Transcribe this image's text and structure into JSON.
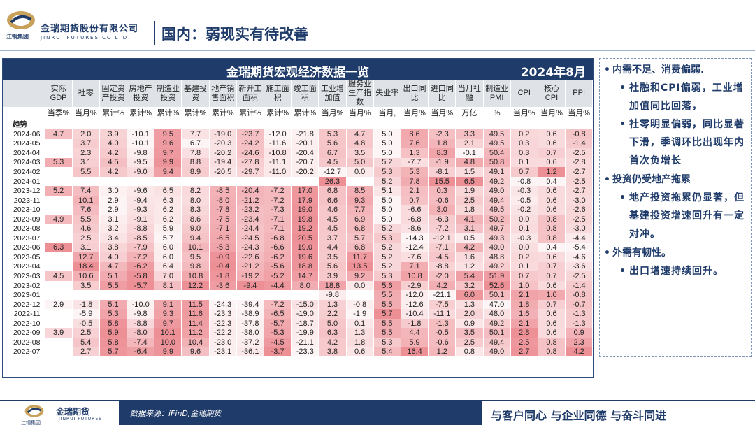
{
  "header": {
    "company_cn": "金瑞期货股份有限公司",
    "company_en": "JINRUI FUTURES CO.LTD.",
    "group_name": "江铜集团",
    "page_title": "国内：弱现实有待改善"
  },
  "table": {
    "title": "金瑞期货宏观经济数据一览",
    "date": "2024年8月",
    "columns": [
      {
        "name": "实际GDP",
        "unit": "当季%"
      },
      {
        "name": "社零",
        "unit": "当月%"
      },
      {
        "name": "固定资产投资",
        "unit": "累计%"
      },
      {
        "name": "房地产投资",
        "unit": "累计%"
      },
      {
        "name": "制造业投资",
        "unit": "累计%"
      },
      {
        "name": "基建投资",
        "unit": "累计%"
      },
      {
        "name": "地产销售面积",
        "unit": "累计%"
      },
      {
        "name": "新开工面积",
        "unit": "累计%"
      },
      {
        "name": "施工面积",
        "unit": "累计%"
      },
      {
        "name": "竣工面积",
        "unit": "累计%"
      },
      {
        "name": "工业增加值",
        "unit": "当月%"
      },
      {
        "name": "服务业生产指数",
        "unit": "当月%"
      },
      {
        "name": "失业率",
        "unit": "当月,"
      },
      {
        "name": "出口同比",
        "unit": "当月%"
      },
      {
        "name": "进口同比",
        "unit": "当月%"
      },
      {
        "name": "当月社融",
        "unit": "万亿"
      },
      {
        "name": "制造业PMI",
        "unit": "%"
      },
      {
        "name": "CPI",
        "unit": "当月%"
      },
      {
        "name": "核心CPI",
        "unit": "当月%"
      },
      {
        "name": "PPI",
        "unit": "当月%"
      }
    ],
    "trend_label": "趋势",
    "rows": [
      {
        "date": "2024-06",
        "v": [
          "4.7",
          "2.0",
          "3.9",
          "-10.1",
          "9.5",
          "7.7",
          "-19.0",
          "-23.7",
          "-12.0",
          "-21.8",
          "5.3",
          "4.7",
          "5.0",
          "8.6",
          "-2.3",
          "3.3",
          "49.5",
          "0.2",
          "0.6",
          "-0.8"
        ]
      },
      {
        "date": "2024-05",
        "v": [
          "",
          "3.7",
          "4.0",
          "-10.1",
          "9.6",
          "6.7",
          "-20.3",
          "-24.2",
          "-11.6",
          "-20.1",
          "5.6",
          "4.8",
          "5.0",
          "7.6",
          "1.8",
          "2.1",
          "49.5",
          "0.3",
          "0.6",
          "-1.4"
        ]
      },
      {
        "date": "2024-04",
        "v": [
          "",
          "2.3",
          "4.2",
          "-9.8",
          "9.7",
          "7.8",
          "-20.2",
          "-24.6",
          "-10.8",
          "-20.4",
          "6.7",
          "3.5",
          "5.0",
          "1.3",
          "8.3",
          "-0.1",
          "50.4",
          "0.3",
          "0.7",
          "-2.5"
        ]
      },
      {
        "date": "2024-03",
        "v": [
          "5.3",
          "3.1",
          "4.5",
          "-9.5",
          "9.9",
          "8.8",
          "-19.4",
          "-27.8",
          "-11.1",
          "-20.7",
          "4.5",
          "5.0",
          "5.2",
          "-7.7",
          "-1.9",
          "4.8",
          "50.8",
          "0.1",
          "0.6",
          "-2.8"
        ]
      },
      {
        "date": "2024-02",
        "v": [
          "",
          "5.5",
          "4.2",
          "-9.0",
          "9.4",
          "8.9",
          "-20.5",
          "-29.7",
          "-11.0",
          "-20.2",
          "-12.7",
          "0.0",
          "5.3",
          "5.3",
          "-8.1",
          "1.5",
          "49.1",
          "0.7",
          "1.2",
          "-2.7"
        ]
      },
      {
        "date": "2024-01",
        "v": [
          "",
          "",
          "",
          "",
          "",
          "",
          "",
          "",
          "",
          "",
          "26.3",
          "",
          "5.2",
          "7.8",
          "15.5",
          "6.5",
          "49.2",
          "-0.8",
          "0.4",
          "-2.5"
        ]
      },
      {
        "date": "2023-12",
        "v": [
          "5.2",
          "7.4",
          "3.0",
          "-9.6",
          "6.5",
          "8.2",
          "-8.5",
          "-20.4",
          "-7.2",
          "17.0",
          "6.8",
          "8.5",
          "5.1",
          "2.1",
          "0.3",
          "1.9",
          "49.0",
          "-0.3",
          "0.6",
          "-2.7"
        ]
      },
      {
        "date": "2023-11",
        "v": [
          "",
          "10.1",
          "2.9",
          "-9.4",
          "6.3",
          "8.0",
          "-8.0",
          "-21.2",
          "-7.2",
          "17.9",
          "6.6",
          "9.3",
          "5.0",
          "0.7",
          "-0.6",
          "2.5",
          "49.4",
          "-0.5",
          "0.6",
          "-3.0"
        ]
      },
      {
        "date": "2023-10",
        "v": [
          "",
          "7.6",
          "2.9",
          "-9.3",
          "6.2",
          "8.3",
          "-7.8",
          "-23.2",
          "-7.3",
          "19.0",
          "4.6",
          "7.7",
          "5.0",
          "-6.6",
          "3.0",
          "1.8",
          "49.5",
          "-0.2",
          "0.6",
          "-2.6"
        ]
      },
      {
        "date": "2023-09",
        "v": [
          "4.9",
          "5.5",
          "3.1",
          "-9.1",
          "6.2",
          "8.6",
          "-7.5",
          "-23.4",
          "-7.1",
          "19.8",
          "4.5",
          "6.9",
          "5.0",
          "-6.8",
          "-6.3",
          "4.1",
          "50.2",
          "0.0",
          "0.8",
          "-2.5"
        ]
      },
      {
        "date": "2023-08",
        "v": [
          "",
          "4.6",
          "3.2",
          "-8.8",
          "5.9",
          "9.0",
          "-7.1",
          "-24.4",
          "-7.1",
          "19.2",
          "4.5",
          "6.8",
          "5.2",
          "-8.6",
          "-7.2",
          "3.1",
          "49.7",
          "0.1",
          "0.8",
          "-3.0"
        ]
      },
      {
        "date": "2023-07",
        "v": [
          "",
          "2.5",
          "3.4",
          "-8.5",
          "5.7",
          "9.4",
          "-6.5",
          "-24.5",
          "-6.8",
          "20.5",
          "3.7",
          "5.7",
          "5.3",
          "-14.3",
          "-12.1",
          "0.5",
          "49.3",
          "-0.3",
          "0.8",
          "-4.4"
        ]
      },
      {
        "date": "2023-06",
        "v": [
          "6.3",
          "3.1",
          "3.8",
          "-7.9",
          "6.0",
          "10.1",
          "-5.3",
          "-24.3",
          "-6.6",
          "19.0",
          "4.4",
          "6.8",
          "5.2",
          "-12.4",
          "-7.1",
          "4.2",
          "49.0",
          "0.0",
          "0.4",
          "-5.4"
        ]
      },
      {
        "date": "2023-05",
        "v": [
          "",
          "12.7",
          "4.0",
          "-7.2",
          "6.0",
          "9.5",
          "-0.9",
          "-22.6",
          "-6.2",
          "19.6",
          "3.5",
          "11.7",
          "5.2",
          "-7.6",
          "-4.5",
          "1.6",
          "48.8",
          "0.2",
          "0.6",
          "-4.6"
        ]
      },
      {
        "date": "2023-04",
        "v": [
          "",
          "18.4",
          "4.7",
          "-6.2",
          "6.4",
          "9.8",
          "-0.4",
          "-21.2",
          "-5.6",
          "18.8",
          "5.6",
          "13.5",
          "5.2",
          "7.1",
          "-8.8",
          "1.2",
          "49.2",
          "0.1",
          "0.7",
          "-3.6"
        ]
      },
      {
        "date": "2023-03",
        "v": [
          "4.5",
          "10.6",
          "5.1",
          "-5.8",
          "7.0",
          "10.8",
          "-1.8",
          "-19.2",
          "-5.2",
          "14.7",
          "3.9",
          "9.2",
          "5.3",
          "10.8",
          "-2.0",
          "5.4",
          "51.9",
          "0.7",
          "0.7",
          "-2.5"
        ]
      },
      {
        "date": "2023-02",
        "v": [
          "",
          "3.5",
          "5.5",
          "-5.7",
          "8.1",
          "12.2",
          "-3.6",
          "-9.4",
          "-4.4",
          "8.0",
          "18.8",
          "0.0",
          "5.6",
          "-2.9",
          "4.2",
          "3.2",
          "52.6",
          "1.0",
          "0.6",
          "-1.4"
        ]
      },
      {
        "date": "2023-01",
        "v": [
          "",
          "",
          "",
          "",
          "",
          "",
          "",
          "",
          "",
          "",
          "-9.8",
          "",
          "5.5",
          "-12.0",
          "-21.1",
          "6.0",
          "50.1",
          "2.1",
          "1.0",
          "-0.8"
        ]
      },
      {
        "date": "2022-12",
        "v": [
          "2.9",
          "-1.8",
          "5.1",
          "-10.0",
          "9.1",
          "11.5",
          "-24.3",
          "-39.4",
          "-7.2",
          "-15.0",
          "1.3",
          "-0.8",
          "5.5",
          "-12.6",
          "-7.5",
          "1.3",
          "47.0",
          "1.8",
          "0.7",
          "-0.7"
        ]
      },
      {
        "date": "2022-11",
        "v": [
          "",
          "-5.9",
          "5.3",
          "-9.8",
          "9.3",
          "11.6",
          "-23.3",
          "-38.9",
          "-6.5",
          "-19.0",
          "2.2",
          "-1.9",
          "5.7",
          "-10.4",
          "-11.1",
          "2.0",
          "48.0",
          "1.6",
          "0.6",
          "-1.3"
        ]
      },
      {
        "date": "2022-10",
        "v": [
          "",
          "-0.5",
          "5.8",
          "-8.8",
          "9.7",
          "11.4",
          "-22.3",
          "-37.8",
          "-5.7",
          "-18.7",
          "5.0",
          "0.1",
          "5.5",
          "-1.8",
          "-1.3",
          "0.9",
          "49.2",
          "2.1",
          "0.6",
          "-1.3"
        ]
      },
      {
        "date": "2022-09",
        "v": [
          "3.9",
          "2.5",
          "5.9",
          "-8.0",
          "10.1",
          "11.2",
          "-22.2",
          "-38.0",
          "-5.3",
          "-19.9",
          "6.3",
          "1.3",
          "5.5",
          "4.4",
          "-0.5",
          "3.5",
          "50.1",
          "2.8",
          "0.6",
          "0.9"
        ]
      },
      {
        "date": "2022-08",
        "v": [
          "",
          "5.4",
          "5.8",
          "-7.4",
          "10.0",
          "10.4",
          "-23.0",
          "-37.2",
          "-4.5",
          "-21.1",
          "4.2",
          "1.8",
          "5.3",
          "5.9",
          "-0.6",
          "2.5",
          "49.4",
          "2.5",
          "0.8",
          "2.3"
        ]
      },
      {
        "date": "2022-07",
        "v": [
          "",
          "2.7",
          "5.7",
          "-6.4",
          "9.9",
          "9.6",
          "-23.1",
          "-36.1",
          "-3.7",
          "-23.3",
          "3.8",
          "0.6",
          "5.4",
          "16.4",
          "1.2",
          "0.8",
          "49.0",
          "2.7",
          "0.8",
          "4.2"
        ]
      }
    ]
  },
  "bullets": [
    {
      "level": 1,
      "text": "内需不足、消费偏弱."
    },
    {
      "level": 2,
      "text": "社融和CPI偏弱，工业增加值同比回落，"
    },
    {
      "level": 2,
      "text": "社零明显偏弱，同比显著下滑，季调环比出现年内首次负增长"
    },
    {
      "level": 1,
      "text": "投资仍受地产拖累"
    },
    {
      "level": 2,
      "text": "地产投资拖累仍显著，但基建投资增速回升有一定对冲。"
    },
    {
      "level": 1,
      "text": "外需有韧性。"
    },
    {
      "level": 2,
      "text": "出口增速持续回升。"
    }
  ],
  "footer": {
    "company_cn": "金瑞期货",
    "company_en": "JINRUI FUTURES",
    "group_name": "江铜集团",
    "source": "数据来源：iFinD,金瑞期货",
    "slogan": "与客户同心 与企业同德 与奋斗同进"
  },
  "colors": {
    "navy": "#1f3b6a",
    "heat_high": "#e8747c",
    "heat_low": "#ffffff"
  }
}
